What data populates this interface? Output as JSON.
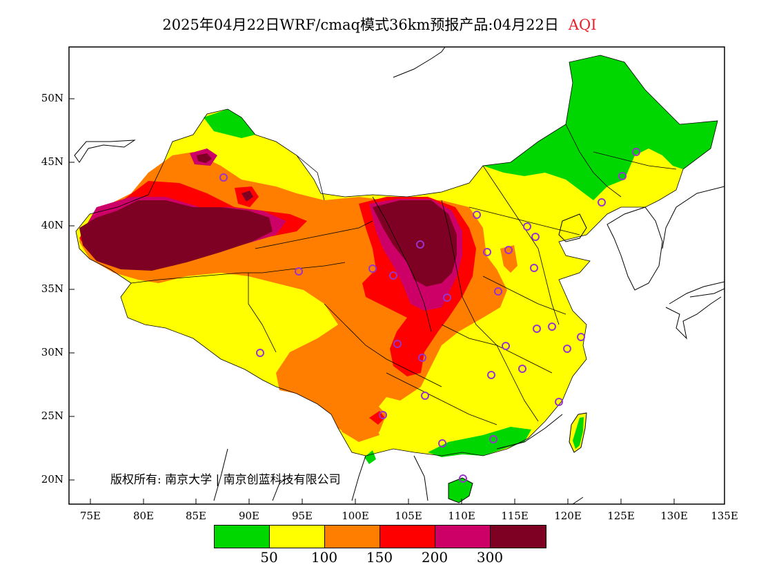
{
  "title": {
    "main": "2025年04月22日WRF/cmaq模式36km预报产品:04月22日",
    "variable": "AQI"
  },
  "latitude_labels": [
    "50N",
    "45N",
    "40N",
    "35N",
    "30N",
    "25N",
    "20N"
  ],
  "longitude_labels": [
    "75E",
    "80E",
    "85E",
    "90E",
    "95E",
    "100E",
    "105E",
    "110E",
    "115E",
    "120E",
    "125E",
    "130E",
    "135E"
  ],
  "copyright": "版权所有: 南京大学 | 南京创蓝科技有限公司",
  "legend": {
    "colors": [
      "#00d700",
      "#ffff00",
      "#ff7e00",
      "#ff0000",
      "#cc0066",
      "#7e0023"
    ],
    "ticks": [
      "50",
      "100",
      "150",
      "200",
      "300"
    ]
  },
  "map": {
    "colors": {
      "good": "#00d700",
      "moderate": "#ffff00",
      "usg": "#ff7e00",
      "unhealthy": "#ff0000",
      "very_unhealthy": "#cc0066",
      "hazardous": "#7e0023",
      "stations": "#9933cc",
      "coast": "#000000"
    },
    "station_icon": "circle-marker-icon"
  }
}
